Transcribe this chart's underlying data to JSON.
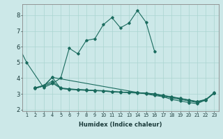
{
  "title": "",
  "xlabel": "Humidex (Indice chaleur)",
  "ylabel": "",
  "bg_color": "#cce8e8",
  "line_color": "#1a6b5e",
  "grid_color": "#aad4d0",
  "xlim": [
    0.5,
    23.5
  ],
  "ylim": [
    1.9,
    8.7
  ],
  "yticks": [
    2,
    3,
    4,
    5,
    6,
    7,
    8
  ],
  "xticks": [
    1,
    2,
    3,
    4,
    5,
    6,
    7,
    8,
    9,
    10,
    11,
    12,
    13,
    14,
    15,
    16,
    17,
    18,
    19,
    20,
    21,
    22,
    23
  ],
  "series1": {
    "x": [
      0,
      1,
      3,
      4,
      5,
      6,
      7,
      8,
      9,
      10,
      11,
      12,
      13,
      14,
      15,
      16
    ],
    "y": [
      6.1,
      5.0,
      3.4,
      3.65,
      4.0,
      5.9,
      5.55,
      6.4,
      6.5,
      7.4,
      7.85,
      7.2,
      7.5,
      8.3,
      7.55,
      5.7
    ]
  },
  "series2": {
    "x": [
      2,
      3,
      4,
      5,
      6,
      7,
      8,
      9,
      10,
      11,
      12,
      13,
      14,
      15,
      16,
      17,
      18,
      19,
      20,
      21,
      22,
      23
    ],
    "y": [
      3.4,
      3.5,
      3.7,
      3.35,
      3.3,
      3.28,
      3.25,
      3.22,
      3.2,
      3.15,
      3.12,
      3.1,
      3.08,
      3.05,
      3.0,
      2.9,
      2.82,
      2.72,
      2.62,
      2.52,
      2.65,
      3.05
    ]
  },
  "series3": {
    "x": [
      2,
      3,
      4,
      5,
      6,
      7,
      8,
      9,
      10,
      11,
      12,
      13,
      14,
      15,
      16,
      17,
      18,
      19,
      20,
      21,
      22,
      23
    ],
    "y": [
      3.35,
      3.5,
      4.05,
      3.35,
      3.28,
      3.25,
      3.22,
      3.2,
      3.18,
      3.12,
      3.1,
      3.08,
      3.05,
      3.02,
      2.95,
      2.85,
      2.75,
      2.65,
      2.55,
      2.45,
      2.6,
      3.05
    ]
  },
  "series4": {
    "x": [
      2,
      3,
      4,
      5,
      6,
      7,
      8,
      9,
      10,
      11,
      12,
      13,
      14,
      15,
      16,
      17,
      18,
      19,
      20,
      21,
      22,
      23
    ],
    "y": [
      3.38,
      3.55,
      3.8,
      3.38,
      3.32,
      3.28,
      3.25,
      3.22,
      3.2,
      3.15,
      3.12,
      3.1,
      3.08,
      3.05,
      3.0,
      2.9,
      2.8,
      2.7,
      2.6,
      2.5,
      2.62,
      3.05
    ]
  },
  "series5": {
    "x": [
      2,
      3,
      4,
      16,
      17,
      18,
      19,
      20,
      21,
      22,
      23
    ],
    "y": [
      3.35,
      3.5,
      4.05,
      2.9,
      2.82,
      2.65,
      2.55,
      2.45,
      2.38,
      2.62,
      3.1
    ]
  }
}
